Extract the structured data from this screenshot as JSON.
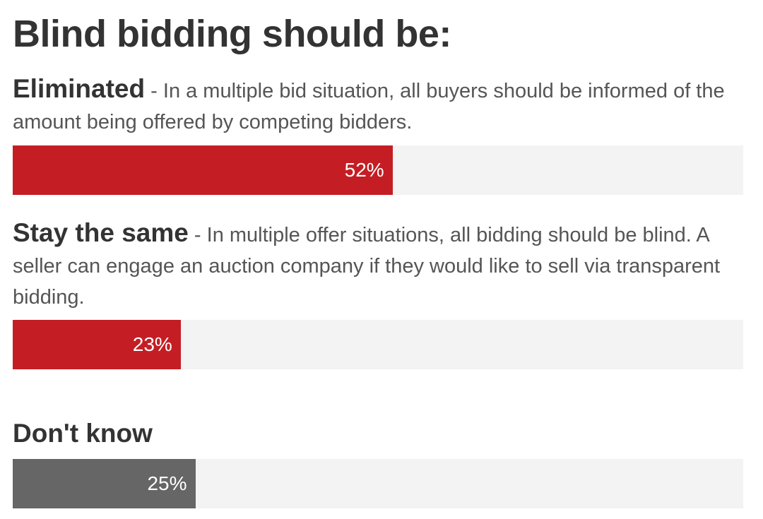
{
  "colors": {
    "bar_red": "#c41e24",
    "bar_gray": "#666666",
    "track": "#f3f3f3"
  },
  "chart_data": {
    "type": "bar",
    "orientation": "horizontal",
    "title": "Blind bidding should be:",
    "xlim": [
      0,
      100
    ],
    "grid": false,
    "categories": [
      "Eliminated",
      "Stay the same",
      "Don't know"
    ],
    "values": [
      52,
      23,
      25
    ],
    "options": [
      {
        "label": "Eliminated",
        "description": " - In a multiple bid situation, all buyers should be informed of the amount being offered by competing bidders.",
        "value": 52,
        "value_label": "52%",
        "color": "#c41e24"
      },
      {
        "label": "Stay the same",
        "description": " - In multiple offer situations, all bidding should be blind. A seller can engage an auction company if they would like to sell via transparent bidding.",
        "value": 23,
        "value_label": "23%",
        "color": "#c41e24"
      },
      {
        "label": "Don't know",
        "description": "",
        "value": 25,
        "value_label": "25%",
        "color": "#666666"
      }
    ]
  }
}
